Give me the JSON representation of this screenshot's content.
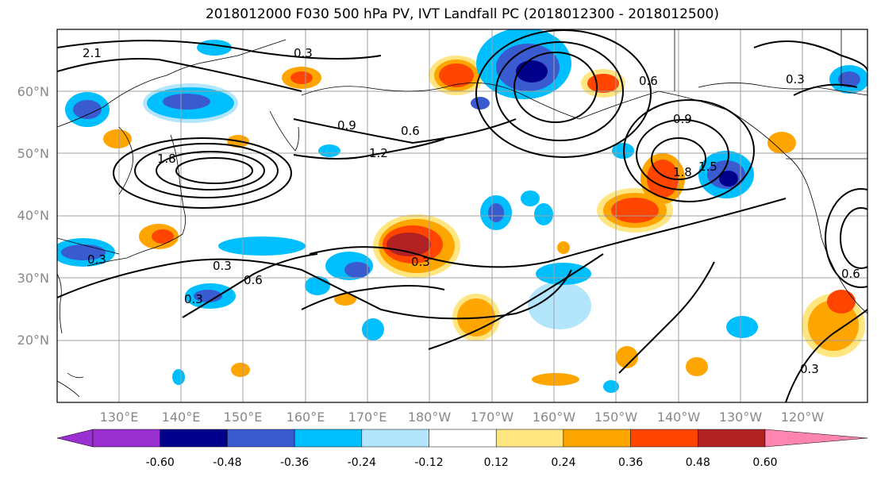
{
  "title": "2018012000 F030 500 hPa PV, IVT Landfall PC (2018012300 - 2018012500)",
  "lat_labels": [
    "60°N",
    "50°N",
    "40°N",
    "30°N",
    "20°N"
  ],
  "lon_labels": [
    "130°E",
    "140°E",
    "150°E",
    "160°E",
    "170°E",
    "180°W",
    "170°W",
    "160°W",
    "150°W",
    "140°W",
    "130°W",
    "120°W"
  ],
  "contour_labels": [
    "0.3",
    "0.6",
    "0.9",
    "1.2",
    "1.5",
    "1.8",
    "2.1"
  ],
  "colorbar": {
    "ticks": [
      "-0.60",
      "-0.48",
      "-0.36",
      "-0.24",
      "-0.12",
      "0.12",
      "0.24",
      "0.36",
      "0.48",
      "0.60"
    ],
    "colors": [
      "#9b30d0",
      "#00008b",
      "#3a5bd0",
      "#00bfff",
      "#b3e5fc",
      "#ffffff",
      "#ffe680",
      "#ffa500",
      "#ff4500",
      "#b22222",
      "#ff85b0"
    ]
  },
  "colors": {
    "warm_light": "#ffe680",
    "warm_mid": "#ffa500",
    "warm_strong": "#ff4500",
    "warm_max": "#b22222",
    "cool_light": "#b3e5fc",
    "cool_mid": "#00bfff",
    "cool_strong": "#3a5bd0",
    "cool_max": "#00008b"
  }
}
